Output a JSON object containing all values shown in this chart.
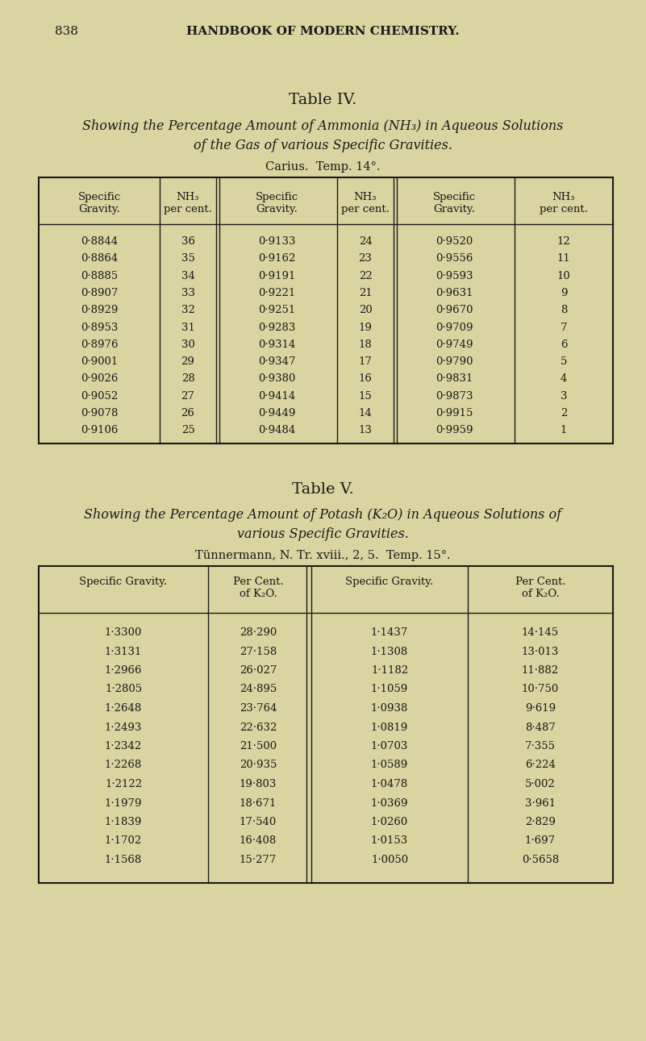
{
  "bg_color": "#d9d4a0",
  "page_bg": "#cfc99a",
  "text_color": "#1a1a1a",
  "header_text": "838",
  "header_title": "HANDBOOK OF MODERN CHEMISTRY.",
  "table4_title": "Table IV.",
  "table4_subtitle_line1": "Showing the Percentage Amount of Ammonia (NH₃) in Aqueous Solutions",
  "table4_subtitle_line2": "of the Gas of various Specific Gravities.",
  "table4_source": "Carius.  Temp. 14°.",
  "table4_col_headers": [
    "Specific\nGravity.",
    "NH₃\nper cent.",
    "Specific\nGravity.",
    "NH₃\nper cent.",
    "Specific\nGravity.",
    "NH₃\nper cent."
  ],
  "table4_data_col1": [
    "0·8844",
    "0·8864",
    "0·8885",
    "0·8907",
    "0·8929",
    "0·8953",
    "0·8976",
    "0·9001",
    "0·9026",
    "0·9052",
    "0·9078",
    "0·9106"
  ],
  "table4_data_col2": [
    "36",
    "35",
    "34",
    "33",
    "32",
    "31",
    "30",
    "29",
    "28",
    "27",
    "26",
    "25"
  ],
  "table4_data_col3": [
    "0·9133",
    "0·9162",
    "0·9191",
    "0·9221",
    "0·9251",
    "0·9283",
    "0·9314",
    "0·9347",
    "0·9380",
    "0·9414",
    "0·9449",
    "0·9484"
  ],
  "table4_data_col4": [
    "24",
    "23",
    "22",
    "21",
    "20",
    "19",
    "18",
    "17",
    "16",
    "15",
    "14",
    "13"
  ],
  "table4_data_col5": [
    "0·9520",
    "0·9556",
    "0·9593",
    "0·9631",
    "0·9670",
    "0·9709",
    "0·9749",
    "0·9790",
    "0·9831",
    "0·9873",
    "0·9915",
    "0·9959"
  ],
  "table4_data_col6": [
    "12",
    "11",
    "10",
    "9",
    "8",
    "7",
    "6",
    "5",
    "4",
    "3",
    "2",
    "1"
  ],
  "table5_title": "Table V.",
  "table5_subtitle_line1": "Showing the Percentage Amount of Potash (K₂O) in Aqueous Solutions of",
  "table5_subtitle_line2": "various Specific Gravities.",
  "table5_source": "Tünnermann, N. Tr. xviii., 2, 5.  Temp. 15°.",
  "table5_col_headers": [
    "Specific Gravity.",
    "Per Cent.\nof K₂O.",
    "Specific Gravity.",
    "Per Cent.\nof K₂O."
  ],
  "table5_data_col1": [
    "1·3300",
    "1·3131",
    "1·2966",
    "1·2805",
    "1·2648",
    "1·2493",
    "1·2342",
    "1·2268",
    "1·2122",
    "1·1979",
    "1·1839",
    "1·1702",
    "1·1568"
  ],
  "table5_data_col2": [
    "28·290",
    "27·158",
    "26·027",
    "24·895",
    "23·764",
    "22·632",
    "21·500",
    "20·935",
    "19·803",
    "18·671",
    "17·540",
    "16·408",
    "15·277"
  ],
  "table5_data_col3": [
    "1·1437",
    "1·1308",
    "1·1182",
    "1·1059",
    "1·0938",
    "1·0819",
    "1·0703",
    "1·0589",
    "1·0478",
    "1·0369",
    "1·0260",
    "1·0153",
    "1·0050"
  ],
  "table5_data_col4": [
    "14·145",
    "13·013",
    "11·882",
    "10·750",
    "9·619",
    "8·487",
    "7·355",
    "6·224",
    "5·002",
    "3·961",
    "2·829",
    "1·697",
    "0·5658"
  ]
}
